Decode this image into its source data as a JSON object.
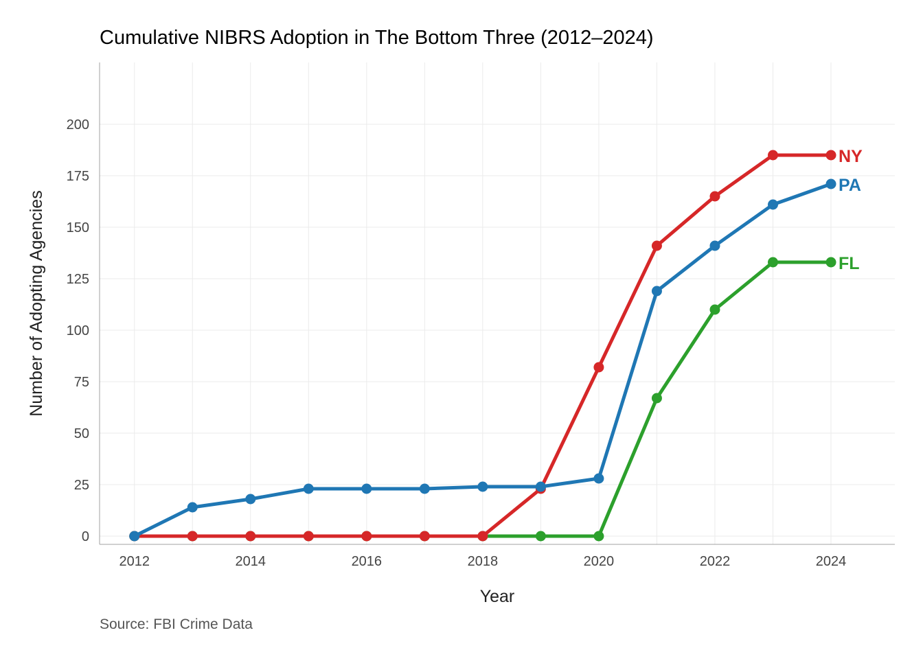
{
  "chart_data": {
    "type": "line",
    "title": "Cumulative NIBRS Adoption in The Bottom Three (2012–2024)",
    "xlabel": "Year",
    "ylabel": "Number of Adopting Agencies",
    "caption": "Source: FBI Crime Data",
    "x": [
      2012,
      2013,
      2014,
      2015,
      2016,
      2017,
      2018,
      2019,
      2020,
      2021,
      2022,
      2023,
      2024
    ],
    "xlim": [
      2011.4,
      2025.1
    ],
    "ylim": [
      -4,
      230
    ],
    "x_ticks": [
      "2012",
      "2014",
      "2016",
      "2018",
      "2020",
      "2022",
      "2024"
    ],
    "x_tick_values": [
      2012,
      2014,
      2016,
      2018,
      2020,
      2022,
      2024
    ],
    "y_ticks": [
      "0",
      "25",
      "50",
      "75",
      "100",
      "125",
      "150",
      "175",
      "200"
    ],
    "y_tick_values": [
      0,
      25,
      50,
      75,
      100,
      125,
      150,
      175,
      200
    ],
    "grid": true,
    "legend": "none",
    "series": [
      {
        "name": "FL",
        "color": "#2ca02c",
        "values": [
          0,
          0,
          0,
          0,
          0,
          0,
          0,
          0,
          0,
          67,
          110,
          133,
          133
        ]
      },
      {
        "name": "NY",
        "color": "#d62728",
        "values": [
          0,
          0,
          0,
          0,
          0,
          0,
          0,
          23,
          82,
          141,
          165,
          185,
          185
        ]
      },
      {
        "name": "PA",
        "color": "#1f77b4",
        "values": [
          0,
          14,
          18,
          23,
          23,
          23,
          24,
          24,
          28,
          119,
          141,
          161,
          171
        ]
      }
    ]
  }
}
